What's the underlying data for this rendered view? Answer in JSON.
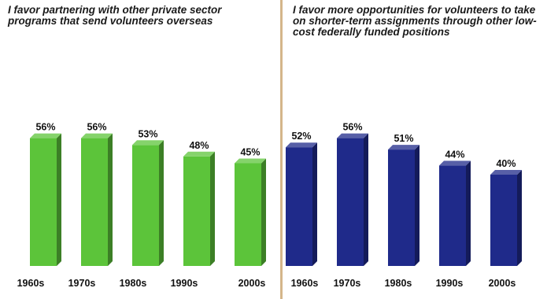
{
  "chart_data": [
    {
      "type": "bar",
      "title": "I favor partnering with other private sector programs that send volunteers overseas",
      "categories": [
        "1960s",
        "1970s",
        "1980s",
        "1990s",
        "2000s"
      ],
      "values": [
        56,
        56,
        53,
        48,
        45
      ],
      "value_labels": [
        "56%",
        "56%",
        "53%",
        "48%",
        "45%"
      ],
      "unit": "%",
      "xlabel": "",
      "ylabel": "",
      "ylim": [
        0,
        60
      ],
      "grid": false,
      "legend": "none",
      "color": "#5cc43a"
    },
    {
      "type": "bar",
      "title": "I favor more opportunities for volunteers to take on shorter-term assignments through other low-cost federally funded positions",
      "categories": [
        "1960s",
        "1970s",
        "1980s",
        "1990s",
        "2000s"
      ],
      "values": [
        52,
        56,
        51,
        44,
        40
      ],
      "value_labels": [
        "52%",
        "56%",
        "51%",
        "44%",
        "40%"
      ],
      "unit": "%",
      "xlabel": "",
      "ylabel": "",
      "ylim": [
        0,
        60
      ],
      "grid": false,
      "legend": "none",
      "color": "#1f2a8a"
    }
  ]
}
